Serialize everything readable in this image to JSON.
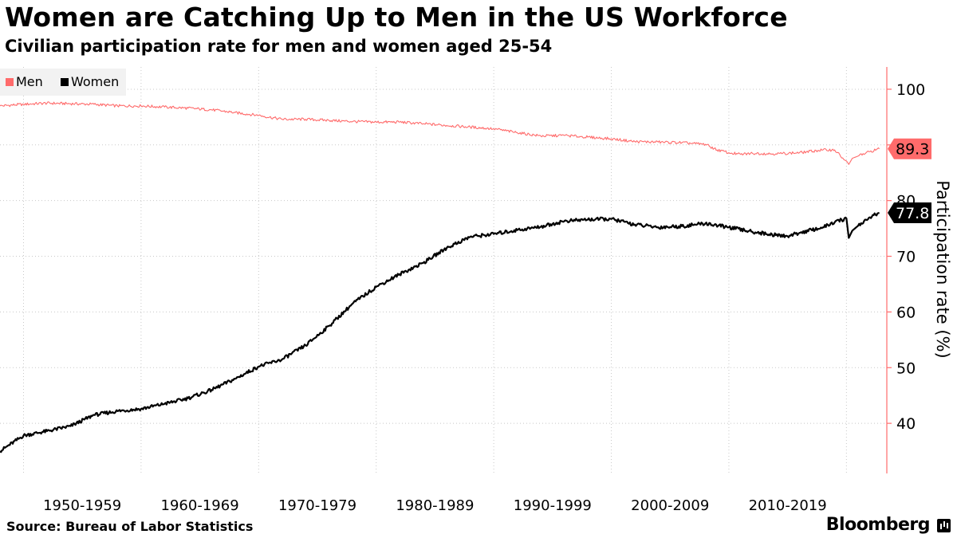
{
  "chart_data": {
    "type": "line",
    "title": "Women are Catching Up to Men in the US Workforce",
    "subtitle": "Civilian participation rate for men and women aged 25-54",
    "ylabel": "Participation rate (%)",
    "ylim": [
      31,
      104
    ],
    "yticks": [
      40,
      50,
      60,
      70,
      80,
      90,
      100
    ],
    "xlim": [
      1948.0,
      2023.3
    ],
    "x_tick_labels": [
      "1950-1959",
      "1960-1969",
      "1970-1979",
      "1980-1989",
      "1990-1999",
      "2000-2009",
      "2010-2019"
    ],
    "grid": true,
    "legend_position": "top-left",
    "series": [
      {
        "name": "Men",
        "color": "#ff6b6b",
        "last_value_label": "89.3",
        "points": [
          [
            1948,
            97.0
          ],
          [
            1950,
            97.3
          ],
          [
            1952,
            97.5
          ],
          [
            1954,
            97.4
          ],
          [
            1956,
            97.3
          ],
          [
            1958,
            97.0
          ],
          [
            1960,
            97.0
          ],
          [
            1962,
            96.8
          ],
          [
            1964,
            96.6
          ],
          [
            1966,
            96.3
          ],
          [
            1968,
            95.8
          ],
          [
            1970,
            95.3
          ],
          [
            1972,
            94.6
          ],
          [
            1974,
            94.6
          ],
          [
            1976,
            94.4
          ],
          [
            1978,
            94.2
          ],
          [
            1980,
            94.1
          ],
          [
            1982,
            94.1
          ],
          [
            1984,
            93.8
          ],
          [
            1986,
            93.5
          ],
          [
            1988,
            93.2
          ],
          [
            1990,
            92.9
          ],
          [
            1992,
            92.2
          ],
          [
            1994,
            91.6
          ],
          [
            1996,
            91.7
          ],
          [
            1998,
            91.4
          ],
          [
            2000,
            91.1
          ],
          [
            2002,
            90.6
          ],
          [
            2004,
            90.5
          ],
          [
            2006,
            90.4
          ],
          [
            2008,
            90.1
          ],
          [
            2009,
            89.1
          ],
          [
            2010,
            88.6
          ],
          [
            2011,
            88.3
          ],
          [
            2012,
            88.5
          ],
          [
            2014,
            88.4
          ],
          [
            2016,
            88.6
          ],
          [
            2018,
            89.1
          ],
          [
            2019,
            89.1
          ],
          [
            2020.2,
            86.5
          ],
          [
            2020.5,
            87.6
          ],
          [
            2021,
            88.0
          ],
          [
            2022,
            88.8
          ],
          [
            2022.8,
            89.3
          ]
        ]
      },
      {
        "name": "Women",
        "color": "#000000",
        "last_value_label": "77.8",
        "points": [
          [
            1948,
            35.0
          ],
          [
            1950,
            37.8
          ],
          [
            1952,
            38.6
          ],
          [
            1954,
            39.5
          ],
          [
            1956,
            41.5
          ],
          [
            1958,
            42.2
          ],
          [
            1960,
            42.6
          ],
          [
            1962,
            43.5
          ],
          [
            1964,
            44.5
          ],
          [
            1966,
            46.0
          ],
          [
            1968,
            48.0
          ],
          [
            1970,
            50.2
          ],
          [
            1972,
            51.5
          ],
          [
            1974,
            54.0
          ],
          [
            1976,
            57.5
          ],
          [
            1978,
            61.5
          ],
          [
            1980,
            64.5
          ],
          [
            1982,
            66.8
          ],
          [
            1984,
            68.8
          ],
          [
            1986,
            71.5
          ],
          [
            1988,
            73.5
          ],
          [
            1990,
            74.0
          ],
          [
            1992,
            74.7
          ],
          [
            1994,
            75.3
          ],
          [
            1996,
            76.3
          ],
          [
            1998,
            76.6
          ],
          [
            2000,
            76.7
          ],
          [
            2002,
            75.7
          ],
          [
            2004,
            75.2
          ],
          [
            2006,
            75.4
          ],
          [
            2008,
            75.9
          ],
          [
            2010,
            75.2
          ],
          [
            2012,
            74.4
          ],
          [
            2014,
            73.8
          ],
          [
            2015,
            73.6
          ],
          [
            2016,
            74.2
          ],
          [
            2018,
            75.2
          ],
          [
            2019,
            76.1
          ],
          [
            2020,
            76.8
          ],
          [
            2020.2,
            73.3
          ],
          [
            2020.5,
            74.6
          ],
          [
            2021,
            75.5
          ],
          [
            2022,
            77.0
          ],
          [
            2022.8,
            77.8
          ]
        ]
      }
    ]
  },
  "footer": {
    "source": "Source: Bureau of Labor Statistics",
    "brand": "Bloomberg"
  }
}
